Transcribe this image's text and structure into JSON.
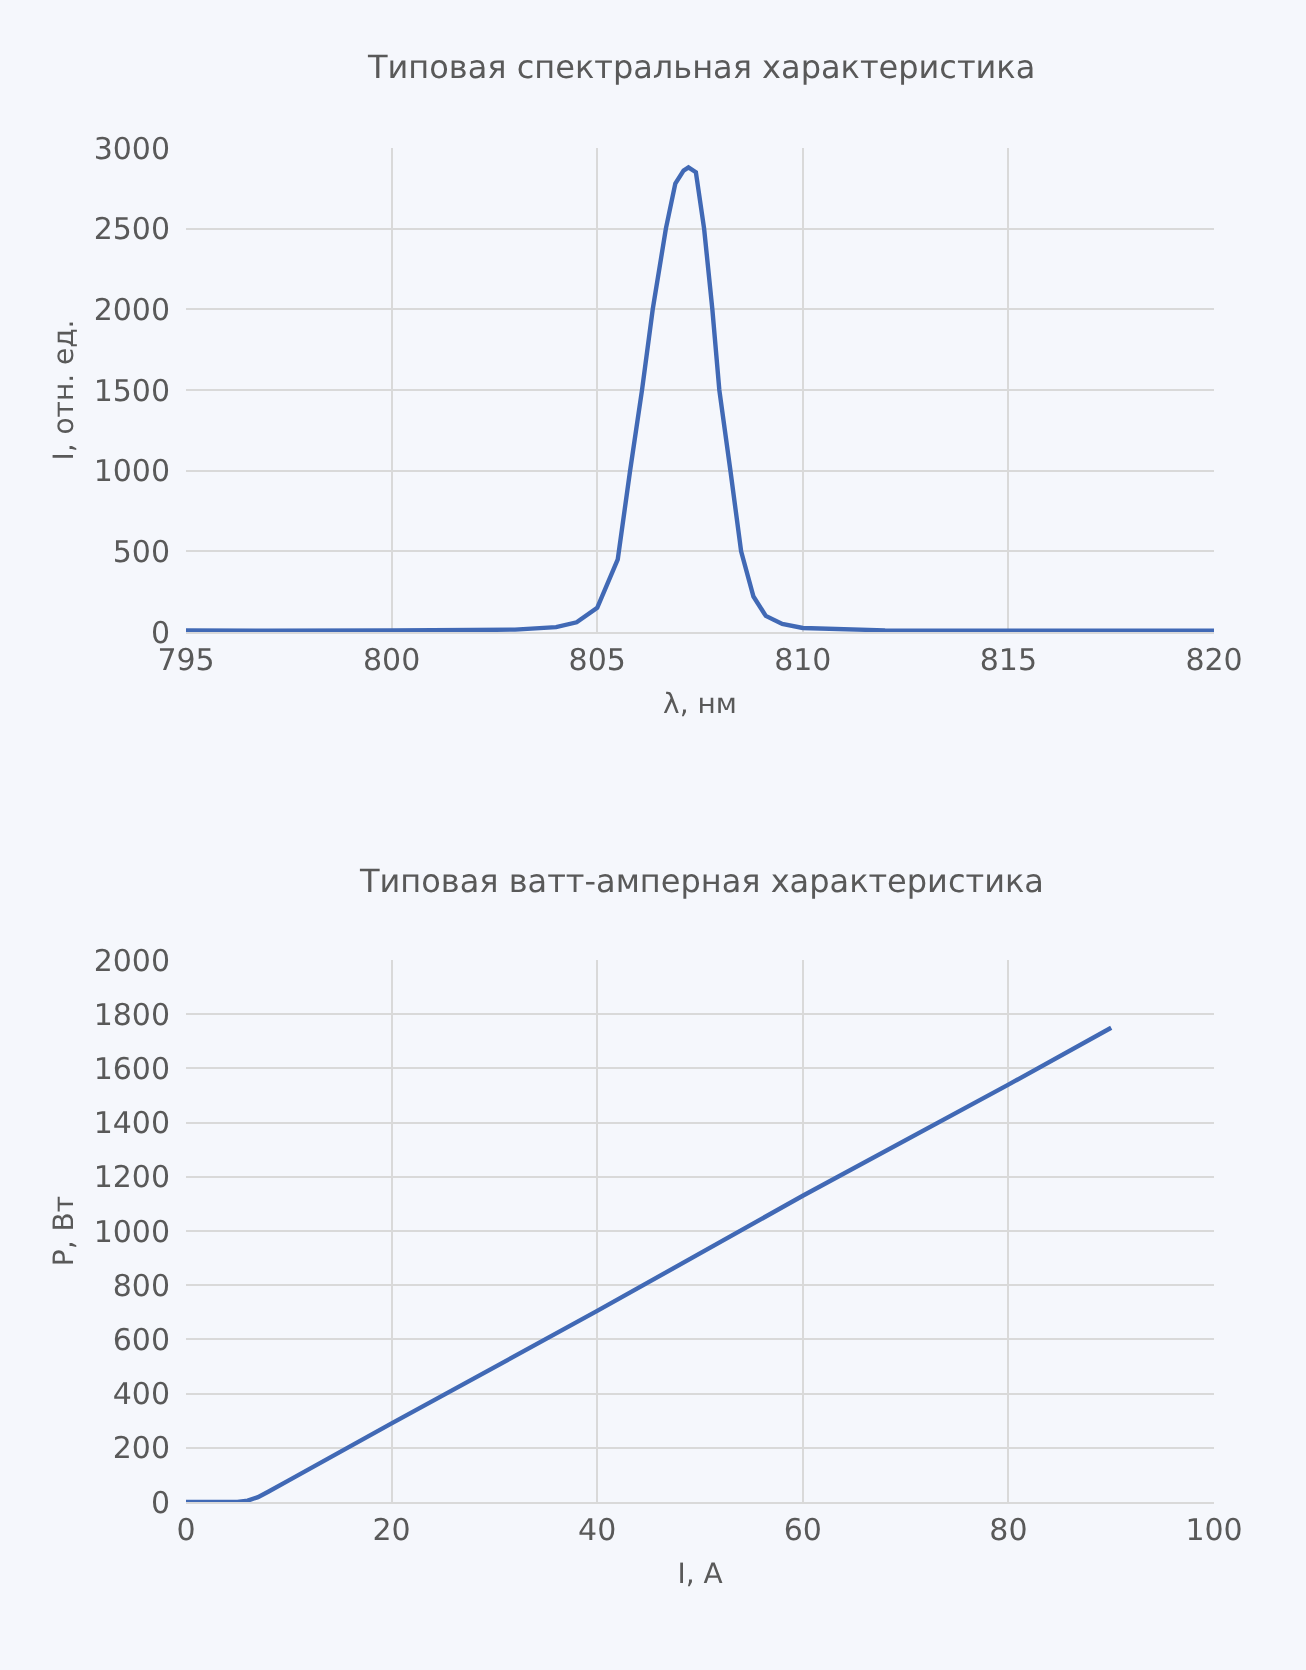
{
  "chart_data": [
    {
      "type": "line",
      "title": "Типовая спектральная характеристика",
      "xlabel": "λ, нм",
      "ylabel": "I, отн. ед.",
      "series": [
        {
          "color": "#4169b5",
          "x": [
            795,
            797,
            800,
            802,
            803,
            804,
            804.5,
            805,
            805.5,
            805.8,
            806.09,
            806.35,
            806.67,
            806.9,
            807.1,
            807.22,
            807.4,
            807.6,
            807.8,
            807.97,
            808.24,
            808.5,
            808.8,
            809.1,
            809.5,
            810,
            812,
            815,
            818,
            820
          ],
          "values": [
            10,
            8,
            10,
            12,
            15,
            30,
            60,
            150,
            450,
            1000,
            1500,
            2000,
            2500,
            2780,
            2860,
            2880,
            2850,
            2500,
            2000,
            1500,
            1000,
            500,
            220,
            100,
            50,
            25,
            10,
            8,
            8,
            8
          ]
        }
      ],
      "xlim": [
        795,
        820
      ],
      "xticks": [
        795,
        800,
        805,
        810,
        815,
        820
      ],
      "ylim": [
        0,
        3000
      ],
      "yticks": [
        0,
        500,
        1000,
        1500,
        2000,
        2500,
        3000
      ],
      "grid": true,
      "line_style": "solid"
    },
    {
      "type": "line",
      "title": "Типовая ватт-амперная характеристика",
      "xlabel": "I, А",
      "ylabel": "P, Вт",
      "series": [
        {
          "color": "#4169b5",
          "x": [
            0,
            5,
            6,
            7,
            8,
            10,
            20,
            40,
            60,
            80,
            90
          ],
          "values": [
            0,
            0,
            5,
            18,
            38,
            80,
            290,
            705,
            1130,
            1540,
            1750
          ]
        }
      ],
      "xlim": [
        0,
        100
      ],
      "xticks": [
        0,
        20,
        40,
        60,
        80,
        100
      ],
      "ylim": [
        0,
        2000
      ],
      "yticks": [
        0,
        200,
        400,
        600,
        800,
        1000,
        1200,
        1400,
        1600,
        1800,
        2000
      ],
      "grid": true,
      "line_style": "solid"
    }
  ]
}
